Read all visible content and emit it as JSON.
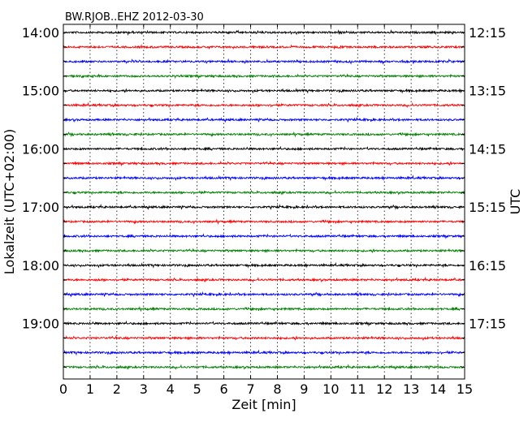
{
  "chart_data": {
    "type": "line",
    "title": "BW.RJOB..EHZ 2012-03-30",
    "xlabel": "Zeit  [min]",
    "ylabel_left": "Lokalzeit (UTC+02:00)",
    "ylabel_right": "UTC",
    "xlim": [
      0,
      15
    ],
    "x_ticks": [
      0,
      1,
      2,
      3,
      4,
      5,
      6,
      7,
      8,
      9,
      10,
      11,
      12,
      13,
      14,
      15
    ],
    "grid": "vertical dotted at each minute",
    "trace_interval_min": 15,
    "local_ticks": [
      {
        "trace_index": 0,
        "label": "14:00"
      },
      {
        "trace_index": 4,
        "label": "15:00"
      },
      {
        "trace_index": 8,
        "label": "16:00"
      },
      {
        "trace_index": 12,
        "label": "17:00"
      },
      {
        "trace_index": 16,
        "label": "18:00"
      },
      {
        "trace_index": 20,
        "label": "19:00"
      }
    ],
    "utc_ticks": [
      {
        "trace_index": 0,
        "label": "12:15"
      },
      {
        "trace_index": 4,
        "label": "13:15"
      },
      {
        "trace_index": 8,
        "label": "14:15"
      },
      {
        "trace_index": 12,
        "label": "15:15"
      },
      {
        "trace_index": 16,
        "label": "16:15"
      },
      {
        "trace_index": 20,
        "label": "17:15"
      }
    ],
    "trace_colors": [
      "#000000",
      "#ff0000",
      "#0000ff",
      "#008000"
    ],
    "trace_count": 24,
    "trace_starts_local": [
      "14:00",
      "14:15",
      "14:30",
      "14:45",
      "15:00",
      "15:15",
      "15:30",
      "15:45",
      "16:00",
      "16:15",
      "16:30",
      "16:45",
      "17:00",
      "17:15",
      "17:30",
      "17:45",
      "18:00",
      "18:15",
      "18:30",
      "18:45",
      "19:00",
      "19:15",
      "19:30",
      "19:45"
    ]
  }
}
